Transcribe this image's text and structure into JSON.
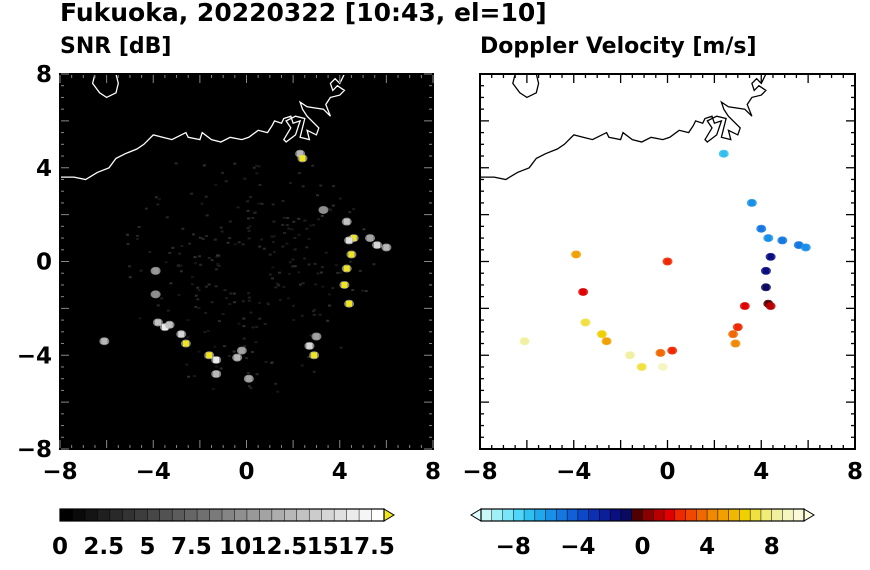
{
  "title": "Fukuoka, 20220322 [10:43, el=10]",
  "panels": [
    {
      "id": "snr",
      "title": "SNR [dB]"
    },
    {
      "id": "velocity",
      "title": "Doppler Velocity [m/s]"
    }
  ],
  "chart_data": [
    {
      "type": "heatmap",
      "title": "SNR [dB]",
      "xlim": [
        -8,
        8
      ],
      "ylim": [
        -8,
        8
      ],
      "xticks": [
        "-8",
        "-4",
        "0",
        "4",
        "8"
      ],
      "yticks": [
        "8",
        "4",
        "0",
        "-4",
        "-8"
      ],
      "colorbar": {
        "labels": [
          "0",
          "2.5",
          "5",
          "7.5",
          "10",
          "12.5",
          "15",
          "17.5"
        ],
        "range": [
          0,
          18.5
        ],
        "extend": "max",
        "colors": [
          "#000000",
          "#0a0a0a",
          "#141414",
          "#1f1f1f",
          "#292929",
          "#333333",
          "#3d3d3d",
          "#474747",
          "#525252",
          "#5c5c5c",
          "#666666",
          "#707070",
          "#7a7a7a",
          "#858585",
          "#8f8f8f",
          "#999999",
          "#a3a3a3",
          "#adadad",
          "#b8b8b8",
          "#c2c2c2",
          "#cccccc",
          "#d6d6d6",
          "#e0e0e0",
          "#ebebeb",
          "#f5f5f5",
          "#ffffff"
        ],
        "extend_color": "#f0e61e"
      },
      "background": "#000000",
      "points": [
        [
          2.3,
          4.6,
          13
        ],
        [
          2.4,
          4.4,
          18
        ],
        [
          3.3,
          2.2,
          10
        ],
        [
          4.3,
          1.7,
          14
        ],
        [
          4.6,
          1.0,
          19
        ],
        [
          4.4,
          0.9,
          16
        ],
        [
          5.6,
          0.7,
          15
        ],
        [
          6.0,
          0.6,
          13
        ],
        [
          4.5,
          0.3,
          19
        ],
        [
          4.3,
          -0.3,
          19
        ],
        [
          4.2,
          -1.0,
          19
        ],
        [
          4.4,
          -1.8,
          18
        ],
        [
          5.3,
          1.0,
          12
        ],
        [
          3.0,
          -3.2,
          12
        ],
        [
          2.7,
          -3.6,
          15
        ],
        [
          2.9,
          -4.0,
          19
        ],
        [
          -3.9,
          -0.4,
          11
        ],
        [
          -3.9,
          -1.4,
          10
        ],
        [
          -3.8,
          -2.6,
          14
        ],
        [
          -3.5,
          -2.8,
          17
        ],
        [
          -2.8,
          -3.1,
          15
        ],
        [
          -2.6,
          -3.5,
          18
        ],
        [
          -1.3,
          -4.2,
          17
        ],
        [
          -1.6,
          -4.0,
          19
        ],
        [
          -1.3,
          -4.8,
          13
        ],
        [
          -0.4,
          -4.1,
          13
        ],
        [
          -0.2,
          -3.8,
          12
        ],
        [
          0.1,
          -5.0,
          12
        ],
        [
          -6.1,
          -3.4,
          13
        ],
        [
          -3.3,
          -2.7,
          14
        ]
      ]
    },
    {
      "type": "heatmap",
      "title": "Doppler Velocity [m/s]",
      "xlim": [
        -8,
        8
      ],
      "ylim": [
        -8,
        8
      ],
      "xticks": [
        "-8",
        "-4",
        "0",
        "4",
        "8"
      ],
      "yticks": [
        "8",
        "4",
        "0",
        "-4",
        "-8"
      ],
      "colorbar": {
        "labels": [
          "-8",
          "-4",
          "0",
          "4",
          "8"
        ],
        "range": [
          -10,
          10
        ],
        "extend": "both",
        "colors": [
          "#c8f8f8",
          "#a0f0f8",
          "#78e6f8",
          "#50d6f8",
          "#30c0f0",
          "#20a8ec",
          "#1890e8",
          "#1478e0",
          "#1060d8",
          "#0c48c8",
          "#0c30b0",
          "#0c1e98",
          "#0a0e80",
          "#0a0a60",
          "#500000",
          "#880000",
          "#b80000",
          "#e00000",
          "#f02800",
          "#f04800",
          "#f06800",
          "#f08800",
          "#f0a000",
          "#f0b800",
          "#f0d000",
          "#f0e040",
          "#f0ec78",
          "#f0f0a0",
          "#f5f5c0",
          "#fafad8"
        ],
        "extend_low_color": "#e0ffff",
        "extend_high_color": "#ffffe0"
      },
      "background": "#ffffff",
      "points": [
        [
          2.4,
          4.6,
          -7
        ],
        [
          3.6,
          2.5,
          -6
        ],
        [
          4.0,
          1.4,
          -5
        ],
        [
          4.3,
          1.0,
          -6
        ],
        [
          4.9,
          0.9,
          -5
        ],
        [
          5.6,
          0.7,
          -5
        ],
        [
          5.9,
          0.6,
          -6
        ],
        [
          4.4,
          0.2,
          -2
        ],
        [
          4.2,
          -0.4,
          -1.5
        ],
        [
          4.2,
          -1.1,
          -1
        ],
        [
          4.3,
          -1.8,
          -0.5
        ],
        [
          4.4,
          -1.9,
          1
        ],
        [
          3.3,
          -1.9,
          1.5
        ],
        [
          0,
          0,
          2
        ],
        [
          -3.6,
          -1.3,
          1.5
        ],
        [
          -3.9,
          0.3,
          5
        ],
        [
          3.0,
          -2.8,
          2.5
        ],
        [
          2.8,
          -3.1,
          3.5
        ],
        [
          2.9,
          -3.5,
          4.5
        ],
        [
          -3.5,
          -2.6,
          7
        ],
        [
          -2.8,
          -3.1,
          6
        ],
        [
          -2.6,
          -3.4,
          5
        ],
        [
          -1.6,
          -4.0,
          8
        ],
        [
          -0.3,
          -3.9,
          3.5
        ],
        [
          0.2,
          -3.8,
          2.5
        ],
        [
          -6.1,
          -3.4,
          8
        ],
        [
          -1.1,
          -4.5,
          7
        ],
        [
          -0.2,
          -4.5,
          9
        ]
      ]
    }
  ]
}
